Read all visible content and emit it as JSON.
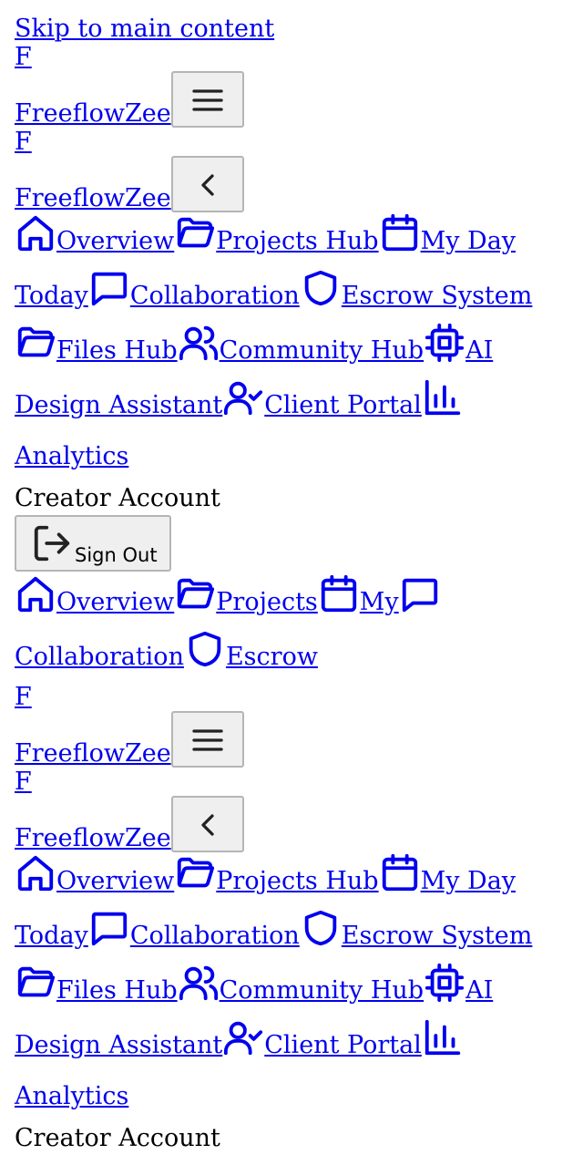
{
  "skip_link": "Skip to main content",
  "logo_letter": "F",
  "brand_name": "FreeflowZee",
  "sidebar_nav": [
    {
      "label": "Overview",
      "icon": "home-icon"
    },
    {
      "label": "Projects Hub",
      "icon": "folder-icon"
    },
    {
      "label": "My Day Today",
      "icon": "calendar-icon"
    },
    {
      "label": "Collaboration",
      "icon": "message-icon"
    },
    {
      "label": "Escrow System",
      "icon": "shield-icon"
    },
    {
      "label": "Files Hub",
      "icon": "folder-icon"
    },
    {
      "label": "Community Hub",
      "icon": "users-icon"
    },
    {
      "label": "AI Design Assistant",
      "icon": "cpu-icon"
    },
    {
      "label": "Client Portal",
      "icon": "user-check-icon"
    },
    {
      "label": "Analytics",
      "icon": "bar-chart-icon"
    }
  ],
  "account_label": "Creator Account",
  "sign_out_label": "Sign Out",
  "mobile_nav": [
    {
      "label": "Overview",
      "icon": "home-icon"
    },
    {
      "label": "Projects",
      "icon": "folder-icon"
    },
    {
      "label": "My",
      "icon": "calendar-icon"
    },
    {
      "label": "Collaboration",
      "icon": "message-icon"
    },
    {
      "label": "Escrow",
      "icon": "shield-icon"
    }
  ],
  "colors": {
    "link": "#0000ee",
    "button_bg": "#efefef",
    "button_border": "#b5b5b5"
  }
}
